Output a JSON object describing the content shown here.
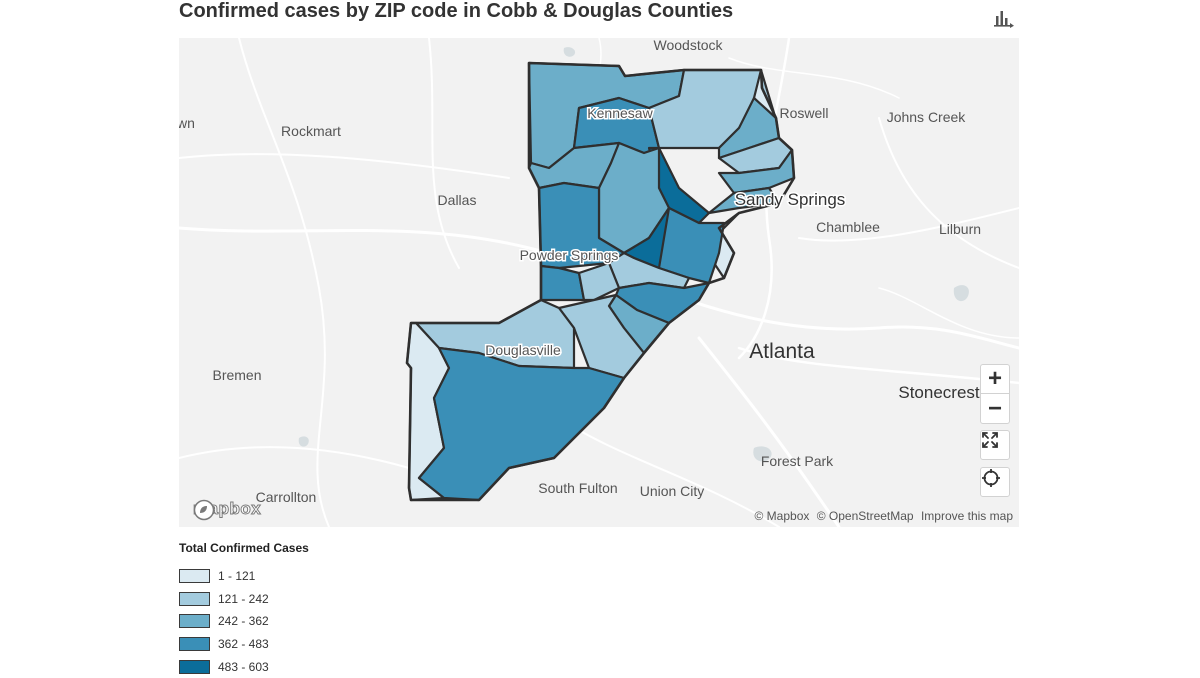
{
  "title": "Confirmed cases by ZIP code in Cobb & Douglas Counties",
  "toolbar": {
    "chart_icon": "bar-chart-icon"
  },
  "map": {
    "places": {
      "woodstock": "Woodstock",
      "wn": "wn",
      "rockmart": "Rockmart",
      "kennesaw": "Kennesaw",
      "roswell": "Roswell",
      "johns_creek": "Johns Creek",
      "dallas": "Dallas",
      "sandy_springs": "Sandy Springs",
      "chamblee": "Chamblee",
      "lilburn": "Lilburn",
      "powder_springs": "Powder Springs",
      "douglasville": "Douglasville",
      "atlanta": "Atlanta",
      "bremen": "Bremen",
      "stonecrest": "Stonecrest",
      "forest_park": "Forest Park",
      "south_fulton": "South Fulton",
      "union_city": "Union City",
      "carrollton": "Carrollton"
    },
    "logo": "mapbox",
    "attribution": {
      "mapbox": "© Mapbox",
      "osm": "© OpenStreetMap",
      "improve": "Improve this map"
    },
    "controls": {
      "zoom_in": "+",
      "zoom_out": "−",
      "fullscreen_icon": "fullscreen-icon",
      "locate_icon": "crosshair-icon"
    }
  },
  "legend": {
    "title": "Total Confirmed Cases",
    "items": [
      {
        "label": "1 - 121",
        "color": "#dbeaf2"
      },
      {
        "label": "121 - 242",
        "color": "#a3cbde"
      },
      {
        "label": "242 - 362",
        "color": "#6caec9"
      },
      {
        "label": "362 - 483",
        "color": "#3a8fb7"
      },
      {
        "label": "483 - 603",
        "color": "#0b6d9a"
      }
    ]
  },
  "colors": {
    "border": "#2f2f2f",
    "road": "#ffffff",
    "land": "#f2f2f2",
    "water": "#d6dde0"
  }
}
